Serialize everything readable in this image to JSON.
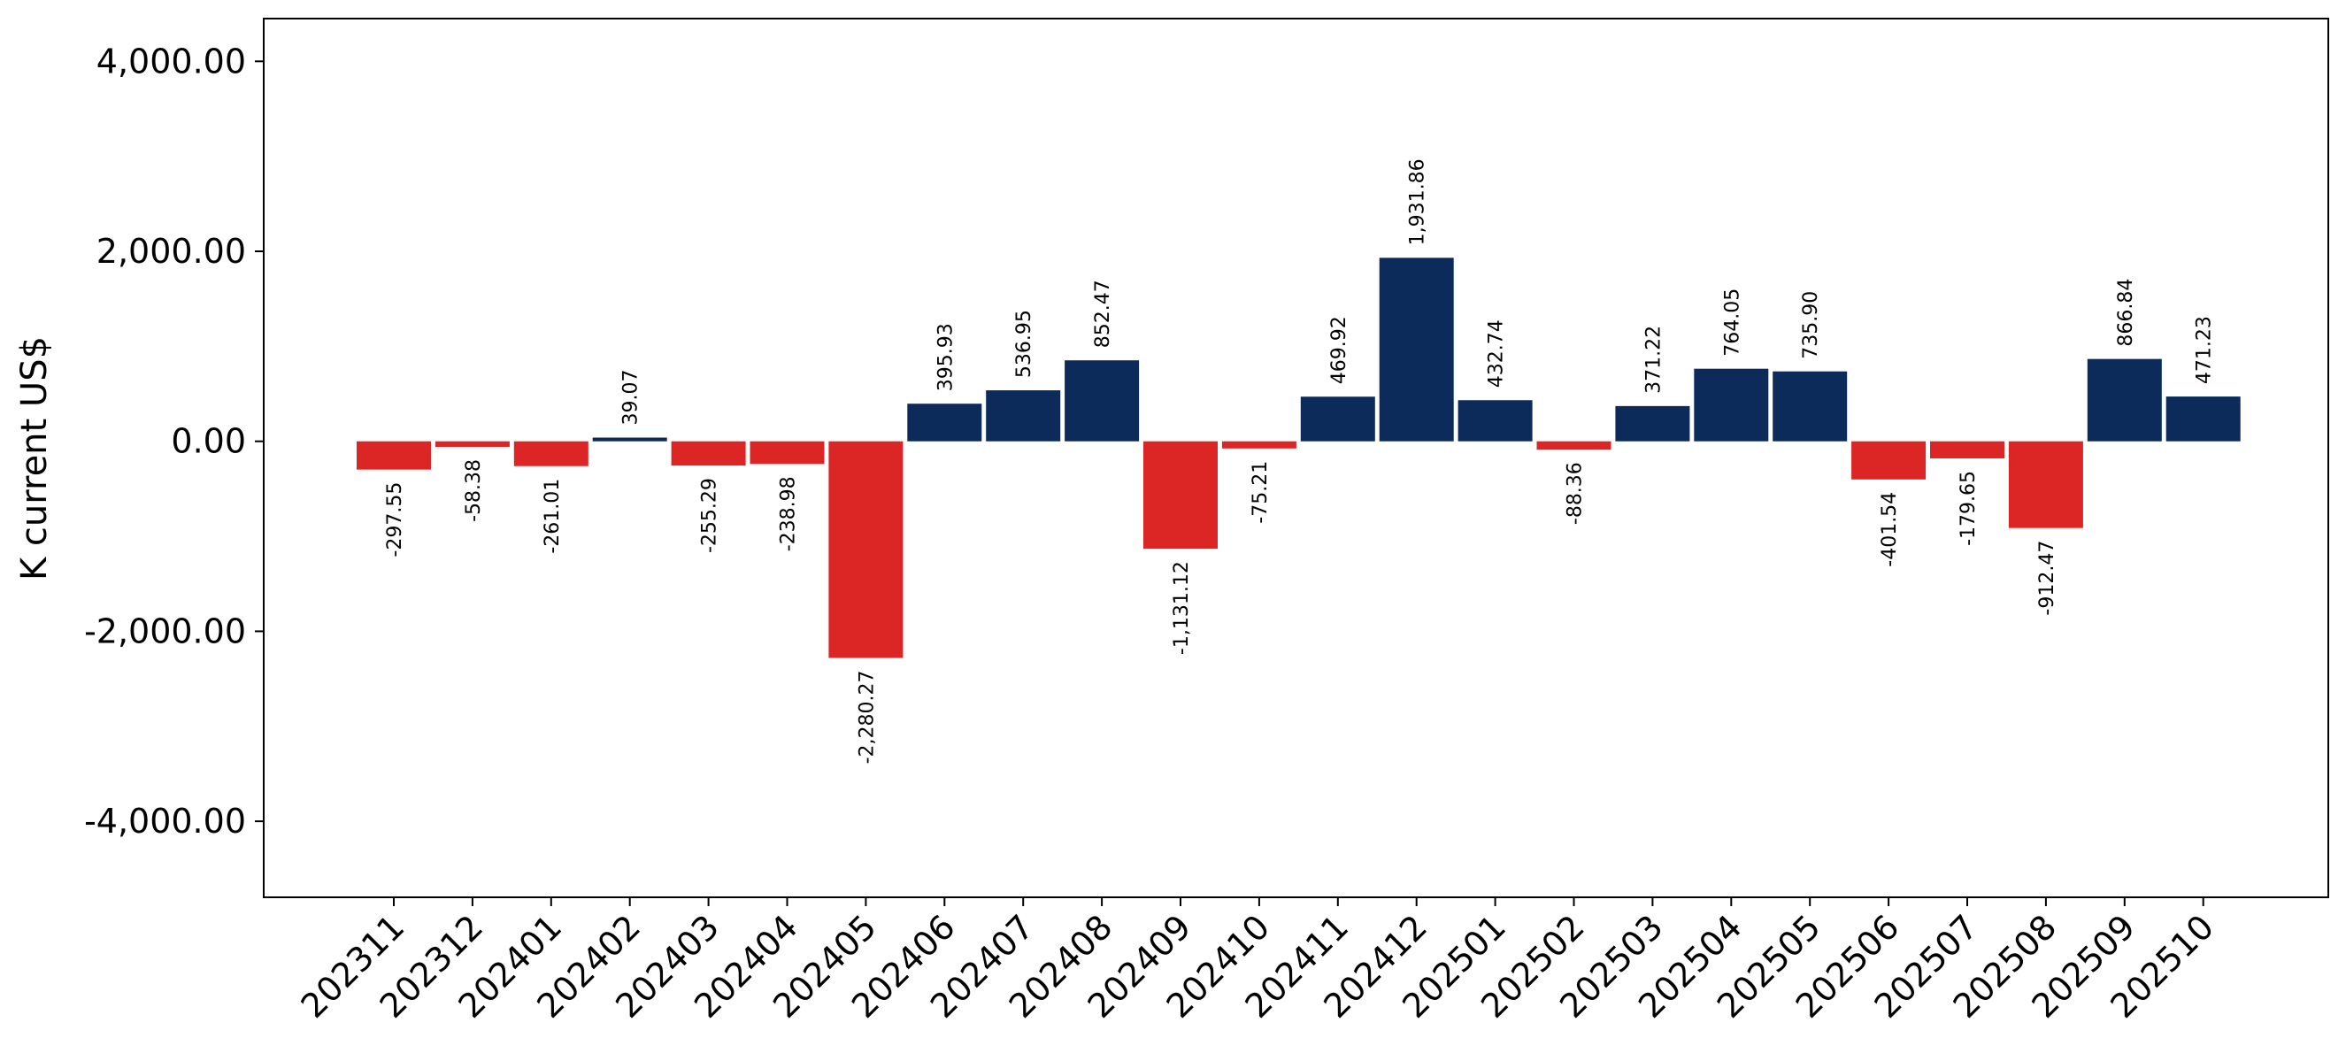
{
  "chart_data": {
    "type": "bar",
    "ylabel": "K current US$",
    "ylim": [
      -4800,
      4450
    ],
    "yticks": [
      -4000,
      -2000,
      0,
      2000,
      4000
    ],
    "ytick_labels": [
      "-4,000.00",
      "-2,000.00",
      "0.00",
      "2,000.00",
      "4,000.00"
    ],
    "categories": [
      "202311",
      "202312",
      "202401",
      "202402",
      "202403",
      "202404",
      "202405",
      "202406",
      "202407",
      "202408",
      "202409",
      "202410",
      "202411",
      "202412",
      "202501",
      "202502",
      "202503",
      "202504",
      "202505",
      "202506",
      "202507",
      "202508",
      "202509",
      "202510"
    ],
    "values": [
      -297.55,
      -58.38,
      -261.01,
      39.07,
      -255.29,
      -238.98,
      -2280.27,
      395.93,
      536.95,
      852.47,
      -1131.12,
      -75.21,
      469.92,
      1931.86,
      432.74,
      -88.36,
      371.22,
      764.05,
      735.9,
      -401.54,
      -179.65,
      -912.47,
      866.84,
      471.23
    ],
    "value_labels": [
      "-297.55",
      "-58.38",
      "-261.01",
      "39.07",
      "-255.29",
      "-238.98",
      "-2,280.27",
      "395.93",
      "536.95",
      "852.47",
      "-1,131.12",
      "-75.21",
      "469.92",
      "1,931.86",
      "432.74",
      "-88.36",
      "371.22",
      "764.05",
      "735.90",
      "-401.54",
      "-179.65",
      "-912.47",
      "866.84",
      "471.23"
    ],
    "colors": {
      "positive": "#0d2b5a",
      "negative": "#dc2626"
    },
    "grid": false,
    "legend": "none"
  }
}
